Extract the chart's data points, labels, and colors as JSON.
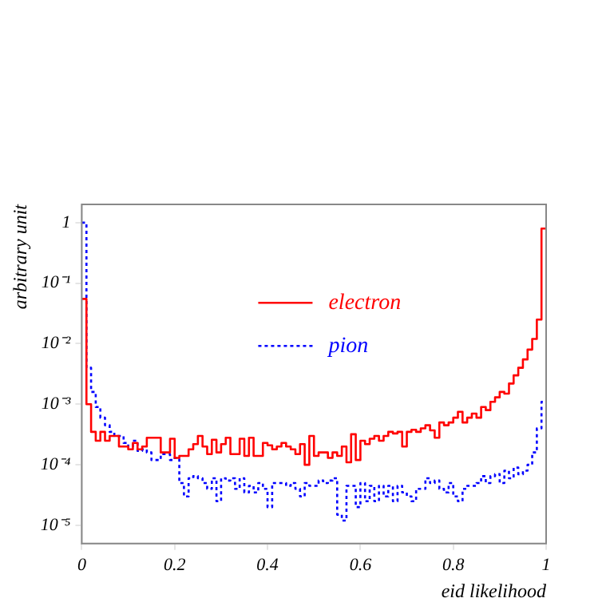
{
  "chart_data": {
    "type": "histogram",
    "xlabel": "eid likelihood",
    "ylabel": "arbitrary unit",
    "bins": [
      0,
      0.01,
      0.02,
      0.03,
      0.04,
      0.05,
      0.06,
      0.07,
      0.08,
      0.09,
      0.1,
      0.11,
      0.12,
      0.13,
      0.14,
      0.15,
      0.16,
      0.17,
      0.18,
      0.19,
      0.2,
      0.21,
      0.22,
      0.23,
      0.24,
      0.25,
      0.26,
      0.27,
      0.28,
      0.29,
      0.3,
      0.31,
      0.32,
      0.33,
      0.34,
      0.35,
      0.36,
      0.37,
      0.38,
      0.39,
      0.4,
      0.41,
      0.42,
      0.43,
      0.44,
      0.45,
      0.46,
      0.47,
      0.48,
      0.49,
      0.5,
      0.51,
      0.52,
      0.53,
      0.54,
      0.55,
      0.56,
      0.57,
      0.58,
      0.59,
      0.6,
      0.61,
      0.62,
      0.63,
      0.64,
      0.65,
      0.66,
      0.67,
      0.68,
      0.69,
      0.7,
      0.71,
      0.72,
      0.73,
      0.74,
      0.75,
      0.76,
      0.77,
      0.78,
      0.79,
      0.8,
      0.81,
      0.82,
      0.83,
      0.84,
      0.85,
      0.86,
      0.87,
      0.88,
      0.89,
      0.9,
      0.91,
      0.92,
      0.93,
      0.94,
      0.95,
      0.96,
      0.97,
      0.98,
      0.99,
      1
    ],
    "series": [
      {
        "name": "electron",
        "color": "#ff0000",
        "line_style": "solid",
        "values": [
          0.055,
          0.001,
          0.00035,
          0.00025,
          0.00035,
          0.00025,
          0.0003,
          0.0003,
          0.0002,
          0.0002,
          0.00018,
          0.00023,
          0.00018,
          0.0002,
          0.00028,
          0.00028,
          0.00028,
          0.00016,
          0.00016,
          0.00027,
          0.00013,
          0.00014,
          0.00014,
          0.00018,
          0.00022,
          0.0003,
          0.0002,
          0.00015,
          0.00026,
          0.00016,
          0.00022,
          0.00028,
          0.00015,
          0.00015,
          0.00027,
          0.00014,
          0.00028,
          0.00014,
          0.00014,
          0.00023,
          0.00021,
          0.00018,
          0.0002,
          0.00023,
          0.0002,
          0.00018,
          0.00015,
          0.00022,
          0.0001,
          0.0003,
          0.00014,
          0.00016,
          0.00016,
          0.00013,
          0.00016,
          0.00014,
          0.0002,
          0.00011,
          0.00032,
          0.00012,
          0.00025,
          0.00022,
          0.00027,
          0.0003,
          0.00025,
          0.0003,
          0.00035,
          0.00033,
          0.00035,
          0.0002,
          0.00035,
          0.00038,
          0.00035,
          0.0004,
          0.00045,
          0.00037,
          0.00028,
          0.0005,
          0.00045,
          0.0005,
          0.0006,
          0.00075,
          0.0005,
          0.0006,
          0.0007,
          0.0006,
          0.0009,
          0.0008,
          0.0011,
          0.0013,
          0.0016,
          0.0015,
          0.0022,
          0.003,
          0.004,
          0.0055,
          0.008,
          0.012,
          0.025,
          0.8
        ]
      },
      {
        "name": "pion",
        "color": "#0000ff",
        "line_style": "dotted",
        "values": [
          1,
          0.004,
          0.0016,
          0.0009,
          0.0006,
          0.00045,
          0.00035,
          0.0003,
          0.0003,
          0.00023,
          0.0002,
          0.00025,
          0.00017,
          0.00018,
          0.00016,
          0.00012,
          0.00012,
          0.00015,
          0.00015,
          0.00012,
          0.00013,
          5e-05,
          3e-05,
          6e-05,
          6.5e-05,
          6e-05,
          5e-05,
          4e-05,
          6e-05,
          2.5e-05,
          6e-05,
          5.5e-05,
          6e-05,
          4e-05,
          6e-05,
          3.5e-05,
          4.5e-05,
          3.5e-05,
          5e-05,
          4e-05,
          2e-05,
          5e-05,
          5e-05,
          5e-05,
          4.5e-05,
          5e-05,
          4e-05,
          3e-05,
          5e-05,
          4.5e-05,
          4.5e-05,
          5.5e-05,
          5e-05,
          5.5e-05,
          6e-05,
          1.5e-05,
          1.2e-05,
          4.5e-05,
          4.5e-05,
          2e-05,
          5e-05,
          2.5e-05,
          4.5e-05,
          2.5e-05,
          4.5e-05,
          3e-05,
          4.5e-05,
          2.5e-05,
          4.5e-05,
          3.5e-05,
          3e-05,
          2.5e-05,
          4e-05,
          4e-05,
          6e-05,
          5e-05,
          5.5e-05,
          4e-05,
          3.5e-05,
          5e-05,
          3e-05,
          2.5e-05,
          4e-05,
          4.5e-05,
          4.5e-05,
          5e-05,
          6.5e-05,
          5e-05,
          6.5e-05,
          7e-05,
          5e-05,
          8e-05,
          6e-05,
          9e-05,
          7e-05,
          8e-05,
          0.0001,
          0.00016,
          0.0004,
          0.0011
        ]
      }
    ],
    "log": "y",
    "xlim": [
      0,
      1
    ],
    "xticks": [
      0,
      0.2,
      0.4,
      0.6,
      0.8,
      1
    ],
    "ylim": [
      5e-06,
      2
    ],
    "yticks": [
      {
        "value": 1e-05,
        "label": "10⁻⁵"
      },
      {
        "value": 0.0001,
        "label": "10⁻⁴"
      },
      {
        "value": 0.001,
        "label": "10⁻³"
      },
      {
        "value": 0.01,
        "label": "10⁻²"
      },
      {
        "value": 0.1,
        "label": "10⁻¹"
      },
      1
    ],
    "grid": false,
    "legend": "top"
  }
}
